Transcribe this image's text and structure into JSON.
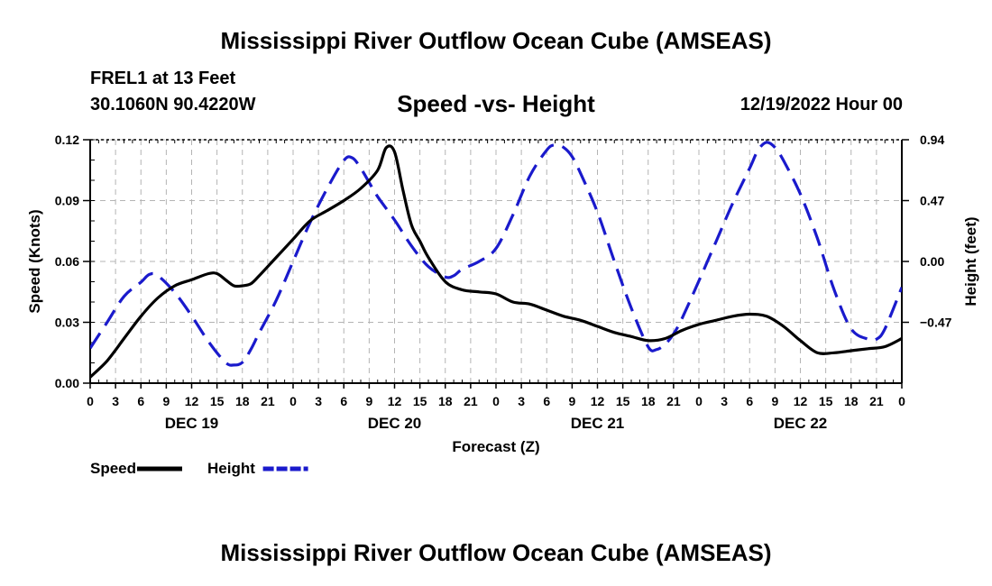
{
  "chart_data": {
    "type": "line",
    "title": "Mississippi River Outflow Ocean Cube (AMSEAS)",
    "station": "FREL1 at 13 Feet",
    "coordinates": "30.1060N  90.4220W",
    "subtitle": "Speed -vs- Height",
    "datetime": "12/19/2022 Hour 00",
    "xlabel": "Forecast (Z)",
    "ylabel_left": "Speed (Knots)",
    "ylabel_right": "Height (feet)",
    "ylim_left": [
      0,
      0.12
    ],
    "ylim_right": [
      -0.94,
      0.94
    ],
    "left_ticks": [
      "0.00",
      "0.03",
      "0.06",
      "0.09",
      "0.12"
    ],
    "right_ticks": [
      {
        "value": 0.94,
        "label": "0.94"
      },
      {
        "value": 0.47,
        "label": "0.47"
      },
      {
        "value": 0.0,
        "label": "0.00"
      },
      {
        "value": -0.47,
        "label": "−0.47"
      }
    ],
    "x_tick_labels": [
      "0",
      "3",
      "6",
      "9",
      "12",
      "15",
      "18",
      "21",
      "0",
      "3",
      "6",
      "9",
      "12",
      "15",
      "18",
      "21",
      "0",
      "3",
      "6",
      "9",
      "12",
      "15",
      "18",
      "21",
      "0",
      "3",
      "6",
      "9",
      "12",
      "15",
      "18",
      "21",
      "0"
    ],
    "day_labels": [
      {
        "hour": 12,
        "label": "DEC 19"
      },
      {
        "hour": 36,
        "label": "DEC 20"
      },
      {
        "hour": 60,
        "label": "DEC 21"
      },
      {
        "hour": 84,
        "label": "DEC 22"
      }
    ],
    "x_range": [
      0,
      96
    ],
    "legend": [
      {
        "name": "Speed",
        "color": "#000000",
        "dash": "solid"
      },
      {
        "name": "Height",
        "color": "#1a1acc",
        "dash": "dashed"
      }
    ],
    "series": [
      {
        "name": "Speed",
        "axis": "left",
        "color": "#000000",
        "x": [
          0,
          2,
          4,
          6,
          8,
          10,
          12,
          14,
          15,
          16,
          17,
          18,
          19,
          20,
          22,
          24,
          26,
          28,
          30,
          32,
          34,
          35,
          36,
          37,
          38,
          39,
          40,
          42,
          44,
          46,
          48,
          50,
          52,
          54,
          56,
          58,
          60,
          62,
          64,
          66,
          68,
          70,
          72,
          74,
          76,
          78,
          80,
          82,
          84,
          86,
          88,
          90,
          92,
          94,
          96
        ],
        "values": [
          0.003,
          0.011,
          0.022,
          0.033,
          0.042,
          0.048,
          0.051,
          0.054,
          0.054,
          0.051,
          0.048,
          0.048,
          0.049,
          0.053,
          0.062,
          0.071,
          0.08,
          0.085,
          0.09,
          0.096,
          0.105,
          0.116,
          0.114,
          0.095,
          0.078,
          0.07,
          0.062,
          0.05,
          0.046,
          0.045,
          0.044,
          0.04,
          0.039,
          0.036,
          0.033,
          0.031,
          0.028,
          0.025,
          0.023,
          0.021,
          0.022,
          0.026,
          0.029,
          0.031,
          0.033,
          0.034,
          0.033,
          0.028,
          0.021,
          0.015,
          0.015,
          0.016,
          0.017,
          0.018,
          0.022
        ]
      },
      {
        "name": "Height",
        "axis": "right",
        "color": "#1a1acc",
        "x": [
          0,
          2,
          4,
          6,
          7,
          8,
          10,
          12,
          14,
          16,
          17,
          18,
          19,
          20,
          22,
          24,
          26,
          28,
          30,
          31,
          32,
          33,
          34,
          36,
          38,
          40,
          42,
          43,
          44,
          46,
          48,
          50,
          52,
          54,
          55,
          56,
          57,
          58,
          60,
          62,
          64,
          66,
          67,
          68,
          69,
          70,
          72,
          74,
          76,
          78,
          79,
          80,
          81,
          82,
          84,
          86,
          88,
          90,
          92,
          93,
          94,
          96
        ],
        "values": [
          -0.67,
          -0.47,
          -0.27,
          -0.16,
          -0.1,
          -0.11,
          -0.24,
          -0.42,
          -0.62,
          -0.78,
          -0.8,
          -0.78,
          -0.68,
          -0.55,
          -0.3,
          0.0,
          0.3,
          0.56,
          0.78,
          0.8,
          0.72,
          0.61,
          0.5,
          0.32,
          0.12,
          -0.04,
          -0.12,
          -0.11,
          -0.06,
          0.0,
          0.1,
          0.36,
          0.66,
          0.86,
          0.9,
          0.88,
          0.81,
          0.68,
          0.38,
          0.0,
          -0.36,
          -0.66,
          -0.68,
          -0.64,
          -0.56,
          -0.44,
          -0.15,
          0.15,
          0.45,
          0.72,
          0.86,
          0.92,
          0.88,
          0.78,
          0.52,
          0.18,
          -0.22,
          -0.52,
          -0.6,
          -0.6,
          -0.52,
          -0.2
        ]
      }
    ]
  }
}
